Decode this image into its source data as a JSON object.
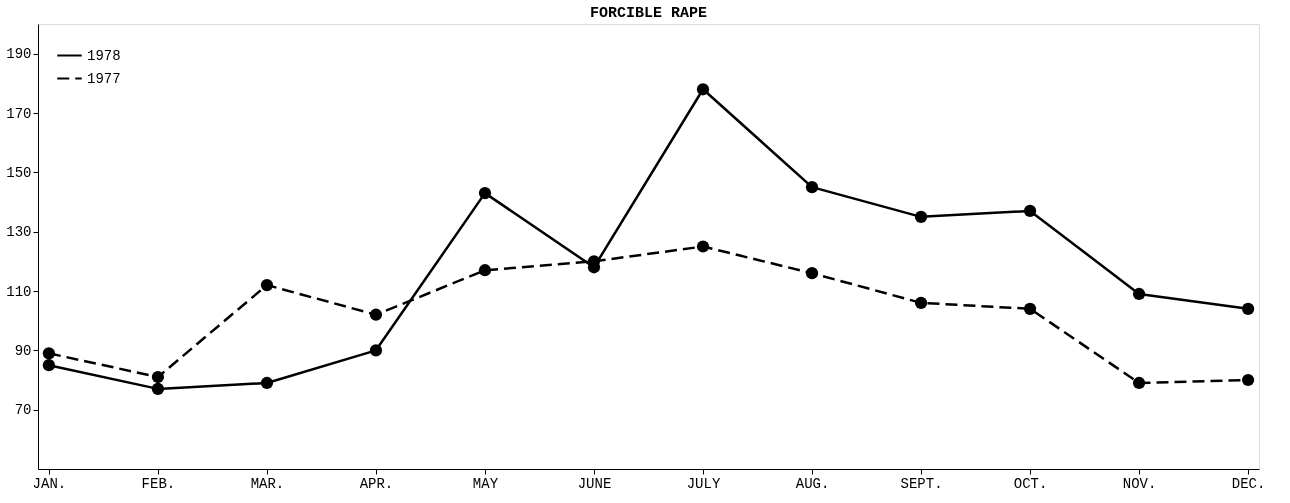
{
  "chart_data": {
    "type": "line",
    "title": "FORCIBLE RAPE",
    "categories": [
      "JAN.",
      "FEB.",
      "MAR.",
      "APR.",
      "MAY",
      "JUNE",
      "JULY",
      "AUG.",
      "SEPT.",
      "OCT.",
      "NOV.",
      "DEC."
    ],
    "series": [
      {
        "name": "1978",
        "color": "#000000",
        "line_style": "solid",
        "values": [
          85,
          77,
          79,
          90,
          143,
          118,
          178,
          145,
          135,
          137,
          109,
          104
        ]
      },
      {
        "name": "1977",
        "color": "#000000",
        "line_style": "dashed",
        "values": [
          89,
          81,
          112,
          102,
          117,
          120,
          125,
          116,
          106,
          104,
          79,
          80
        ]
      }
    ],
    "ylim": [
      50,
      200
    ],
    "yticks": [
      70,
      90,
      110,
      130,
      150,
      170,
      190
    ],
    "grid": false,
    "legend": "top left",
    "marker": "circle"
  }
}
